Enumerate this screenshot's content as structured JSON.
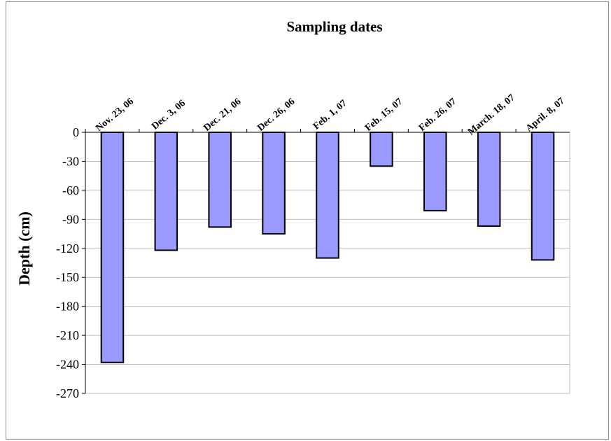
{
  "chart_data": {
    "type": "bar",
    "title": "Sampling dates",
    "xlabel": "",
    "ylabel": "Depth (cm)",
    "categories": [
      "Nov. 23, 06",
      "Dec. 3, 06",
      "Dec. 21, 06",
      "Dec. 26, 06",
      "Feb. 1, 07",
      "Feb. 15, 07",
      "Feb. 26, 07",
      "March. 18, 07",
      "April. 8, 07"
    ],
    "values": [
      -238,
      -122,
      -98,
      -105,
      -130,
      -35,
      -81,
      -97,
      -132
    ],
    "ylim": [
      -270,
      0
    ],
    "yticks": [
      "0",
      "-30",
      "-60",
      "-90",
      "-120",
      "-150",
      "-180",
      "-210",
      "-240",
      "-270"
    ],
    "grid": true,
    "legend": "none",
    "x_axis_position": "top",
    "bar_color": "#9999ff"
  }
}
